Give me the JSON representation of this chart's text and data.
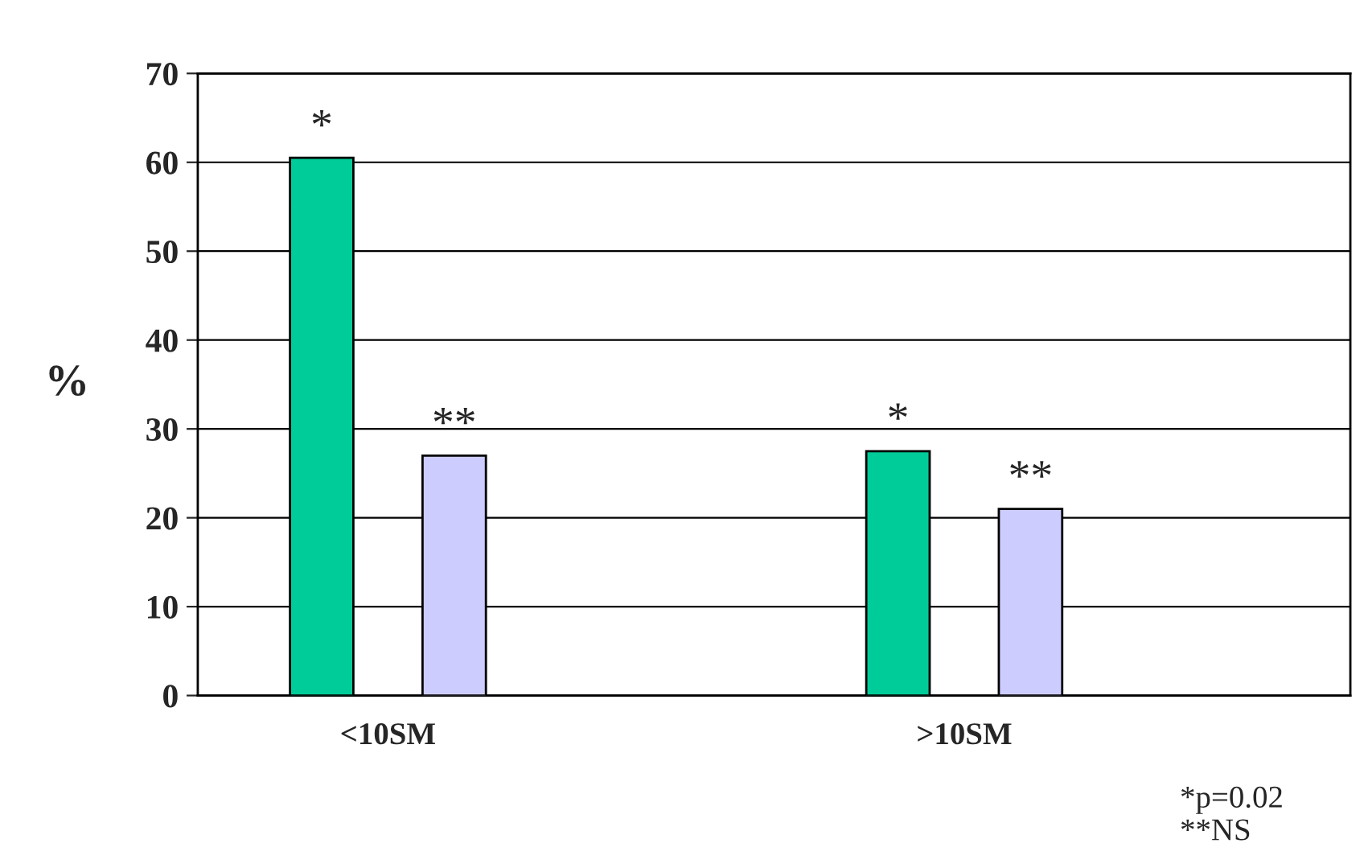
{
  "chart_data": {
    "type": "bar",
    "ylabel": "%",
    "categories": [
      "<10SM",
      ">10SM"
    ],
    "series": [
      {
        "color": "#00cc99",
        "values": [
          60.5,
          27.5
        ]
      },
      {
        "color": "#ccccff",
        "values": [
          27,
          21
        ]
      }
    ],
    "ylim": [
      0,
      70
    ],
    "yticks": [
      0,
      10,
      20,
      30,
      40,
      50,
      60,
      70
    ],
    "grid": "y",
    "legend": false,
    "annotations": [
      "*",
      "**",
      "*",
      "**",
      "*p=0.02\n**NS"
    ]
  }
}
